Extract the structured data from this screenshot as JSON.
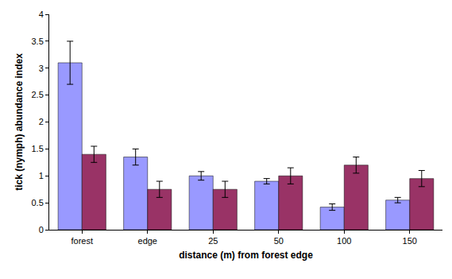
{
  "chart_data": {
    "type": "bar",
    "x_label": "distance (m) from forest edge",
    "y_label": "tick (nymph) abundance index",
    "categories": [
      "forest",
      "edge",
      "25",
      "50",
      "100",
      "150"
    ],
    "series": [
      {
        "color": "#9999ff",
        "values": [
          3.1,
          1.35,
          1.0,
          0.9,
          0.42,
          0.55
        ],
        "errors": [
          0.4,
          0.15,
          0.08,
          0.05,
          0.06,
          0.05
        ]
      },
      {
        "color": "#993366",
        "values": [
          1.4,
          0.75,
          0.75,
          1.0,
          1.2,
          0.95
        ],
        "errors": [
          0.15,
          0.15,
          0.15,
          0.15,
          0.15,
          0.15
        ]
      }
    ],
    "ylim": [
      0,
      4
    ],
    "yticks": [
      0,
      0.5,
      1,
      1.5,
      2,
      2.5,
      3,
      3.5,
      4
    ],
    "grid": false
  }
}
